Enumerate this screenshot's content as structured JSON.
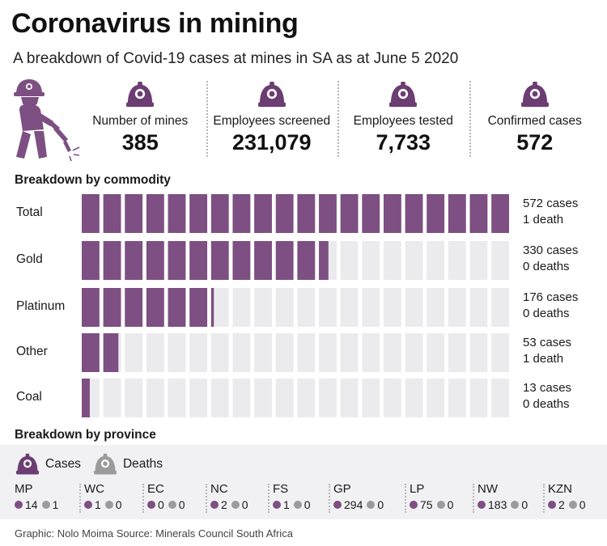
{
  "title": "Coronavirus in mining",
  "subtitle": "A breakdown of Covid-19 cases at mines in SA as at June 5 2020",
  "colors": {
    "accent": "#7d4f82",
    "track": "#ebebed",
    "deaths": "#9b9b9b"
  },
  "stats": [
    {
      "label": "Number of mines",
      "value": "385",
      "icon": "helmet-icon"
    },
    {
      "label": "Employees screened",
      "value": "231,079",
      "icon": "helmet-icon"
    },
    {
      "label": "Employees tested",
      "value": "7,733",
      "icon": "helmet-icon"
    },
    {
      "label": "Confirmed cases",
      "value": "572",
      "icon": "helmet-icon"
    }
  ],
  "commodity_section": "Breakdown by commodity",
  "province_section": "Breakdown by province",
  "legend": {
    "cases": "Cases",
    "deaths": "Deaths"
  },
  "chart_data": {
    "type": "bar",
    "categories": [
      "Total",
      "Gold",
      "Platinum",
      "Other",
      "Coal"
    ],
    "values": [
      572,
      330,
      176,
      53,
      13
    ],
    "deaths": [
      1,
      0,
      0,
      1,
      0
    ],
    "max": 572,
    "cases_text": [
      "572 cases",
      "330 cases",
      "176 cases",
      "53 cases",
      "13 cases"
    ],
    "deaths_text": [
      "1 death",
      "0 deaths",
      "0 deaths",
      "1 death",
      "0 deaths"
    ]
  },
  "provinces": [
    {
      "name": "MP",
      "cases": "14",
      "deaths": "1"
    },
    {
      "name": "WC",
      "cases": "1",
      "deaths": "0"
    },
    {
      "name": "EC",
      "cases": "0",
      "deaths": "0"
    },
    {
      "name": "NC",
      "cases": "2",
      "deaths": "0"
    },
    {
      "name": "FS",
      "cases": "1",
      "deaths": "0"
    },
    {
      "name": "GP",
      "cases": "294",
      "deaths": "0"
    },
    {
      "name": "LP",
      "cases": "75",
      "deaths": "0"
    },
    {
      "name": "NW",
      "cases": "183",
      "deaths": "0"
    },
    {
      "name": "KZN",
      "cases": "2",
      "deaths": "0"
    }
  ],
  "footer": "Graphic: Nolo Moima Source: Minerals Council South Africa"
}
